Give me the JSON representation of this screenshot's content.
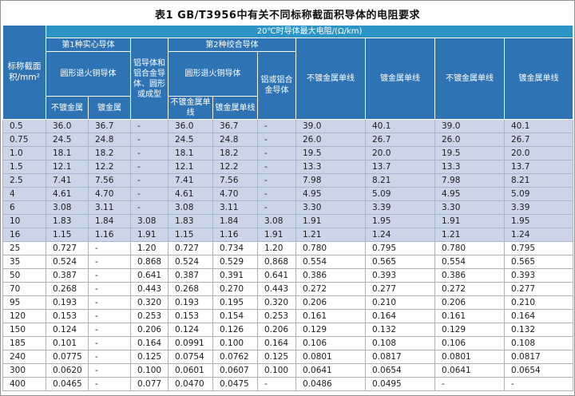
{
  "title": "表1  GB/T3956中有关不同标称截面积导体的电阻要求",
  "table": {
    "header": {
      "area_label": "标称截面积/mm²",
      "max_resistance": "20℃时导体最大电阻/(Ω/km)",
      "class1_solid": "第1种实心导体",
      "class2_stranded": "第2种绞合导体",
      "round_annealed_copper": "圆形退火铜导体",
      "solid_aluminum": "铝导体和铝合金导体、圆形或成型",
      "stranded_aluminum": "铝或铝合金导体",
      "unplated": "不镀金属",
      "plated": "镀金属",
      "unplated_wire": "不镀金属单线",
      "plated_wire": "镀金属单线"
    },
    "rows": [
      {
        "area": "0.5",
        "values": [
          "36.0",
          "36.7",
          "-",
          "36.0",
          "36.7",
          "-",
          "39.0",
          "40.1",
          "39.0",
          "40.1"
        ]
      },
      {
        "area": "0.75",
        "values": [
          "24.5",
          "24.8",
          "-",
          "24.5",
          "24.8",
          "-",
          "26.0",
          "26.7",
          "26.0",
          "26.7"
        ]
      },
      {
        "area": "1.0",
        "values": [
          "18.1",
          "18.2",
          "-",
          "18.1",
          "18.2",
          "-",
          "19.5",
          "20.0",
          "19.5",
          "20.0"
        ]
      },
      {
        "area": "1.5",
        "values": [
          "12.1",
          "12.2",
          "-",
          "12.1",
          "12.2",
          "-",
          "13.3",
          "13.7",
          "13.3",
          "13.7"
        ]
      },
      {
        "area": "2.5",
        "values": [
          "7.41",
          "7.56",
          "-",
          "7.41",
          "7.56",
          "-",
          "7.98",
          "8.21",
          "7.98",
          "8.21"
        ]
      },
      {
        "area": "4",
        "values": [
          "4.61",
          "4.70",
          "-",
          "4.61",
          "4.70",
          "-",
          "4.95",
          "5.09",
          "4.95",
          "5.09"
        ]
      },
      {
        "area": "6",
        "values": [
          "3.08",
          "3.11",
          "-",
          "3.08",
          "3.11",
          "-",
          "3.30",
          "3.39",
          "3.30",
          "3.39"
        ]
      },
      {
        "area": "10",
        "values": [
          "1.83",
          "1.84",
          "3.08",
          "1.83",
          "1.84",
          "3.08",
          "1.91",
          "1.95",
          "1.91",
          "1.95"
        ]
      },
      {
        "area": "16",
        "values": [
          "1.15",
          "1.16",
          "1.91",
          "1.15",
          "1.16",
          "1.91",
          "1.21",
          "1.24",
          "1.21",
          "1.24"
        ]
      },
      {
        "area": "25",
        "values": [
          "0.727",
          "-",
          "1.20",
          "0.727",
          "0.734",
          "1.20",
          "0.780",
          "0.795",
          "0.780",
          "0.795"
        ]
      },
      {
        "area": "35",
        "values": [
          "0.524",
          "-",
          "0.868",
          "0.524",
          "0.529",
          "0.868",
          "0.554",
          "0.565",
          "0.554",
          "0.565"
        ]
      },
      {
        "area": "50",
        "values": [
          "0.387",
          "-",
          "0.641",
          "0.387",
          "0.391",
          "0.641",
          "0.386",
          "0.393",
          "0.386",
          "0.393"
        ]
      },
      {
        "area": "70",
        "values": [
          "0.268",
          "-",
          "0.443",
          "0.268",
          "0.270",
          "0.443",
          "0.272",
          "0.277",
          "0.272",
          "0.277"
        ]
      },
      {
        "area": "95",
        "values": [
          "0.193",
          "-",
          "0.320",
          "0.193",
          "0.195",
          "0.320",
          "0.206",
          "0.210",
          "0.206",
          "0.210"
        ]
      },
      {
        "area": "120",
        "values": [
          "0.153",
          "-",
          "0.253",
          "0.153",
          "0.154",
          "0.253",
          "0.161",
          "0.164",
          "0.161",
          "0.164"
        ]
      },
      {
        "area": "150",
        "values": [
          "0.124",
          "-",
          "0.206",
          "0.124",
          "0.126",
          "0.206",
          "0.129",
          "0.132",
          "0.129",
          "0.132"
        ]
      },
      {
        "area": "185",
        "values": [
          "0.101",
          "-",
          "0.164",
          "0.0991",
          "0.100",
          "0.164",
          "0.106",
          "0.108",
          "0.106",
          "0.108"
        ]
      },
      {
        "area": "240",
        "values": [
          "0.0775",
          "-",
          "0.125",
          "0.0754",
          "0.0762",
          "0.125",
          "0.0801",
          "0.0817",
          "0.0801",
          "0.0817"
        ]
      },
      {
        "area": "300",
        "values": [
          "0.0620",
          "-",
          "0.100",
          "0.0601",
          "0.0607",
          "0.100",
          "0.0641",
          "0.0654",
          "0.0641",
          "0.0654"
        ]
      },
      {
        "area": "400",
        "values": [
          "0.0465",
          "-",
          "0.077",
          "0.0470",
          "0.0475",
          "-",
          "0.0486",
          "0.0495",
          "-",
          "-"
        ]
      }
    ],
    "highlight_row_count": 9
  }
}
